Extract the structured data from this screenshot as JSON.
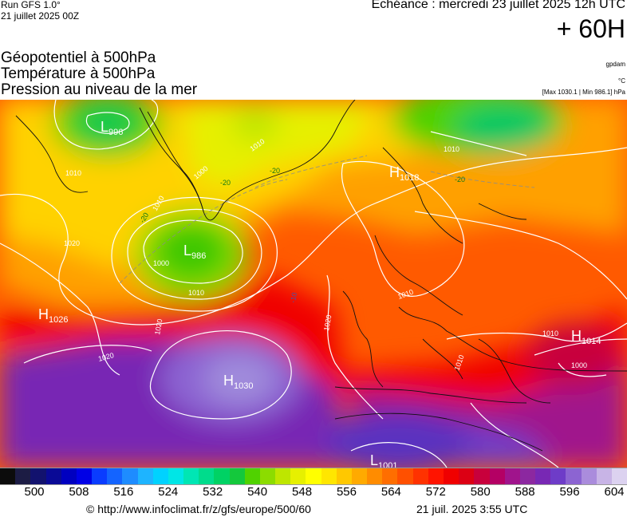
{
  "header": {
    "run_title": "Run GFS 1.0°",
    "run_date": "21 juillet 2025 00Z",
    "echeance": "Echéance : mercredi 23 juillet 2025 12h UTC",
    "lead_time": "+ 60H"
  },
  "parameters": [
    {
      "label": "Géopotentiel à 500hPa",
      "unit": "gpdam"
    },
    {
      "label": "Température à 500hPa",
      "unit": "°C"
    },
    {
      "label": "Pression au niveau de la mer",
      "unit": "[Max 1030.1 | Min 986.1] hPa"
    }
  ],
  "pressure_centers": [
    {
      "type": "L",
      "value": "996"
    },
    {
      "type": "L",
      "value": "986"
    },
    {
      "type": "H",
      "value": "1018"
    },
    {
      "type": "H",
      "value": "1026"
    },
    {
      "type": "H",
      "value": "1030"
    },
    {
      "type": "H",
      "value": "1014"
    },
    {
      "type": "L",
      "value": "1001"
    }
  ],
  "isobar_labels": [
    "1010",
    "1020",
    "1000",
    "1010",
    "1020",
    "1020",
    "1010",
    "1010",
    "1010",
    "1010",
    "1000",
    "1010",
    "1020",
    "1010",
    "1000"
  ],
  "temperature_labels": [
    "-20",
    "-20",
    "-20",
    "-20",
    "-10"
  ],
  "colorbar": {
    "ticks": [
      "500",
      "508",
      "516",
      "524",
      "532",
      "540",
      "548",
      "556",
      "564",
      "572",
      "580",
      "588",
      "596",
      "604"
    ],
    "colors": [
      "#0c0c0c",
      "#1c1c44",
      "#12126e",
      "#0a0a96",
      "#0000c0",
      "#0000e6",
      "#0a3cff",
      "#1464ff",
      "#1e8cff",
      "#1eb4ff",
      "#00d2ff",
      "#00e6e6",
      "#00e6b4",
      "#00dc8c",
      "#00d264",
      "#14c83c",
      "#50d200",
      "#8cdc00",
      "#bee600",
      "#e6f000",
      "#ffff00",
      "#ffe600",
      "#ffc800",
      "#ffaa00",
      "#ff8c00",
      "#ff6e00",
      "#ff5000",
      "#ff3200",
      "#ff1400",
      "#f00000",
      "#dc0014",
      "#c8003c",
      "#b40064",
      "#a0148c",
      "#8c28a0",
      "#7828b4",
      "#6e3cc8",
      "#8c64d2",
      "#aa8cdc",
      "#c8b4e6",
      "#dcd2f0"
    ]
  },
  "footer": {
    "url": "© http://www.infoclimat.fr/z/gfs/europe/500/60",
    "generated": "21 juil. 2025  3:55 UTC"
  }
}
